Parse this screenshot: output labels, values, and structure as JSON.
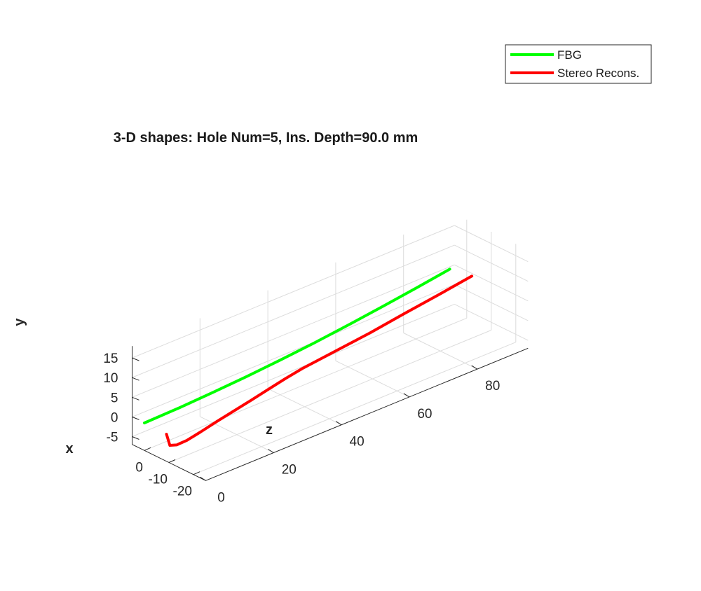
{
  "chart_data": {
    "type": "line",
    "projection": "3d",
    "title": "3-D shapes: Hole Num=5, Ins. Depth=90.0 mm",
    "xlabel": "x",
    "ylabel": "y",
    "zlabel": "z",
    "xlim": [
      -25,
      5
    ],
    "ylim": [
      -7,
      18
    ],
    "zlim": [
      0,
      95
    ],
    "grid": true,
    "x_ticks": [
      -20,
      -10,
      0
    ],
    "y_ticks": [
      -5,
      0,
      5,
      10,
      15
    ],
    "z_ticks": [
      0,
      20,
      40,
      60,
      80
    ],
    "legend_position": "top-right",
    "series": [
      {
        "name": "FBG",
        "color": "#00ff00",
        "x": [
          0,
          0,
          0,
          0,
          0,
          0,
          0,
          0,
          0,
          0
        ],
        "y": [
          0,
          0.2,
          0.6,
          1.1,
          1.8,
          2.6,
          3.6,
          4.7,
          5.9,
          7.2
        ],
        "z": [
          0,
          10,
          20,
          30,
          40,
          50,
          60,
          70,
          80,
          90
        ]
      },
      {
        "name": "Stereo Recons.",
        "color": "#ff0000",
        "x": [
          -9,
          -9,
          -9,
          -9,
          -9,
          -9,
          -9,
          -9,
          -9,
          -9,
          -9,
          -9,
          -9,
          -9
        ],
        "y": [
          -0.1,
          -3.3,
          -3.9,
          -3.8,
          -3.1,
          -2.1,
          -0.3,
          1.6,
          2.4,
          3.4,
          4.4,
          5.7,
          6.9,
          8.2
        ],
        "z": [
          0,
          1,
          3,
          6,
          10,
          15,
          25,
          35,
          40,
          50,
          60,
          70,
          80,
          90
        ]
      }
    ]
  }
}
